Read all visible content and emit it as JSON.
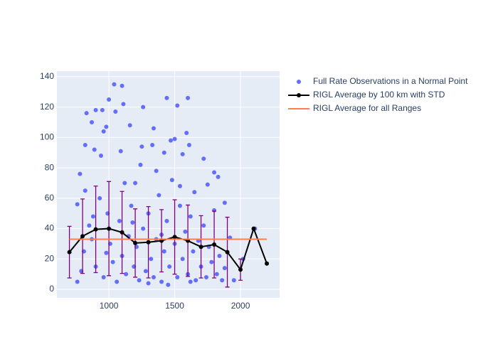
{
  "chart_data": {
    "type": "scatter",
    "xlim": [
      605,
      2297
    ],
    "ylim": [
      -5.6,
      143.7
    ],
    "xticks": [
      1000,
      1500,
      2000
    ],
    "yticks": [
      0,
      20,
      40,
      60,
      80,
      100,
      120,
      140
    ],
    "grid": true,
    "legend": "top-right",
    "series": [
      {
        "name": "Full Rate Observations in a Normal Point",
        "type": "scatter",
        "color": "#636efa",
        "x": [
          1040,
          1100,
          1000,
          1600,
          1440,
          900,
          950,
          1520,
          1110,
          1260,
          830,
          1050,
          1160,
          1340,
          980,
          870,
          1590,
          960,
          1500,
          1470,
          890,
          820,
          1610,
          1250,
          1330,
          1420,
          1720,
          1560,
          1090,
          940,
          780,
          1200,
          1800,
          1830,
          1650,
          1750,
          760,
          1880,
          1920,
          1950,
          2020,
          2110,
          760,
          790,
          810,
          850,
          870,
          900,
          930,
          960,
          990,
          1010,
          1030,
          1060,
          1080,
          1100,
          1130,
          1150,
          1170,
          1190,
          1210,
          1230,
          1260,
          1280,
          1300,
          1320,
          1340,
          1360,
          1380,
          1400,
          1420,
          1440,
          1460,
          1480,
          1500,
          1520,
          1540,
          1560,
          1580,
          1600,
          1620,
          1640,
          1660,
          1680,
          1700,
          1720,
          1740,
          1760,
          1780,
          1800,
          1820,
          1840,
          1860,
          1880,
          820,
          880,
          1120,
          1240,
          1360,
          1540,
          1400,
          1180,
          980,
          1620,
          1300,
          1450
        ],
        "y": [
          135,
          134,
          125,
          126,
          126,
          118,
          118,
          121,
          122,
          120,
          116,
          117,
          108,
          106,
          107,
          110,
          103,
          104,
          99,
          98,
          92,
          95,
          95,
          94,
          95,
          90,
          86,
          89,
          91,
          88,
          76,
          70,
          77,
          74,
          64,
          69,
          56,
          57,
          34,
          6,
          20,
          40,
          5,
          12,
          25,
          42,
          33,
          15,
          60,
          8,
          50,
          30,
          18,
          5,
          45,
          22,
          10,
          35,
          55,
          15,
          28,
          6,
          40,
          12,
          50,
          20,
          8,
          33,
          62,
          5,
          25,
          45,
          15,
          72,
          30,
          8,
          55,
          20,
          38,
          10,
          48,
          25,
          6,
          32,
          15,
          42,
          8,
          28,
          18,
          52,
          10,
          22,
          6,
          14,
          65,
          48,
          70,
          82,
          78,
          68,
          36,
          44,
          24,
          5,
          4,
          3
        ]
      },
      {
        "name": "RIGL Average by 100 km with STD",
        "type": "line",
        "color": "#000000",
        "error_color": "#800080",
        "x": [
          700,
          800,
          900,
          1000,
          1100,
          1200,
          1300,
          1400,
          1500,
          1600,
          1700,
          1800,
          1900,
          2000,
          2100,
          2200
        ],
        "y": [
          24.5,
          35,
          39.5,
          40,
          37.5,
          30.5,
          31,
          32,
          34.5,
          32,
          28,
          29.5,
          24.5,
          13,
          40,
          17
        ],
        "error": [
          17,
          24.5,
          28.5,
          31,
          27,
          22.5,
          23.5,
          20.5,
          24.5,
          23.5,
          20.5,
          22,
          23,
          7,
          0,
          0
        ]
      },
      {
        "name": "RIGL Average for all Ranges",
        "type": "line",
        "color": "#ff7f50",
        "x": [
          700,
          2200
        ],
        "y": [
          33,
          33
        ]
      }
    ]
  }
}
